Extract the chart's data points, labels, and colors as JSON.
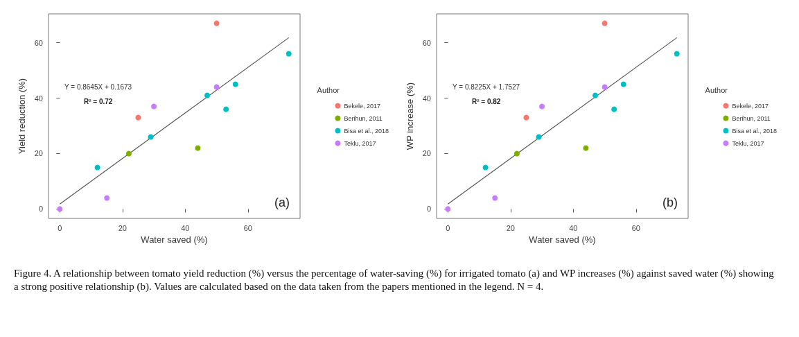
{
  "chart_data": [
    {
      "type": "scatter",
      "xlabel": "Water saved (%)",
      "ylabel": "Yield reduction (%)",
      "legend_title": "Author",
      "legend": "right",
      "marker": "circle",
      "grid": false,
      "xlim": [
        -3.6,
        76.6
      ],
      "xticks": [
        0,
        20,
        40,
        60
      ],
      "ylim": [
        -3.4,
        70.4
      ],
      "yticks": [
        0,
        20,
        40,
        60
      ],
      "series": [
        {
          "name": "Bekele, 2017",
          "color": "#f8766d",
          "x": [
            25,
            50
          ],
          "values": [
            33,
            67
          ]
        },
        {
          "name": "Berihun, 2011",
          "color": "#7cae00",
          "x": [
            22,
            44
          ],
          "values": [
            20,
            22
          ]
        },
        {
          "name": "Bisa et al., 2018",
          "color": "#00bfc4",
          "x": [
            12,
            29,
            47,
            53,
            56,
            73
          ],
          "values": [
            15,
            26,
            41,
            36,
            45,
            56
          ]
        },
        {
          "name": "Teklu, 2017",
          "color": "#c77cff",
          "x": [
            0,
            15,
            30,
            50
          ],
          "values": [
            0,
            4,
            37,
            44
          ]
        },
        {
          "type": "line",
          "marker": "none",
          "color": "#555555",
          "x": [
            0,
            73
          ],
          "values": [
            1.8,
            61.8
          ]
        }
      ],
      "annotations": [
        "Y = 0.8645X + 0.1673",
        "R² = 0.72",
        "(a)"
      ]
    },
    {
      "type": "scatter",
      "xlabel": "Water saved (%)",
      "ylabel": "WP increase (%)",
      "legend_title": "Author",
      "legend": "right",
      "marker": "circle",
      "grid": false,
      "xlim": [
        -3.6,
        76.6
      ],
      "xticks": [
        0,
        20,
        40,
        60
      ],
      "ylim": [
        -3.4,
        70.4
      ],
      "yticks": [
        0,
        20,
        40,
        60
      ],
      "series": [
        {
          "name": "Bekele, 2017",
          "color": "#f8766d",
          "x": [
            25,
            50
          ],
          "values": [
            33,
            67
          ]
        },
        {
          "name": "Berihun, 2011",
          "color": "#7cae00",
          "x": [
            22,
            44
          ],
          "values": [
            20,
            22
          ]
        },
        {
          "name": "Bisa et al., 2018",
          "color": "#00bfc4",
          "x": [
            12,
            29,
            47,
            53,
            56,
            73
          ],
          "values": [
            15,
            26,
            41,
            36,
            45,
            56
          ]
        },
        {
          "name": "Teklu, 2017",
          "color": "#c77cff",
          "x": [
            0,
            15,
            30,
            50
          ],
          "values": [
            0,
            4,
            37,
            44
          ]
        },
        {
          "type": "line",
          "marker": "none",
          "color": "#555555",
          "x": [
            0,
            73
          ],
          "values": [
            1.8,
            61.8
          ]
        }
      ],
      "annotations": [
        "Y = 0.8225X + 1.7527",
        "R² = 0.82",
        "(b)",
        "Figure 4. A relationship between tomato yield reduction (%) versus the percentage of water-saving (%) for irrigated tomato (a) and WP increases (%) against saved water (%) showing a strong positive relationship (b). Values are calculated based on the data taken from the papers mentioned in the legend. N = 4."
      ]
    }
  ]
}
